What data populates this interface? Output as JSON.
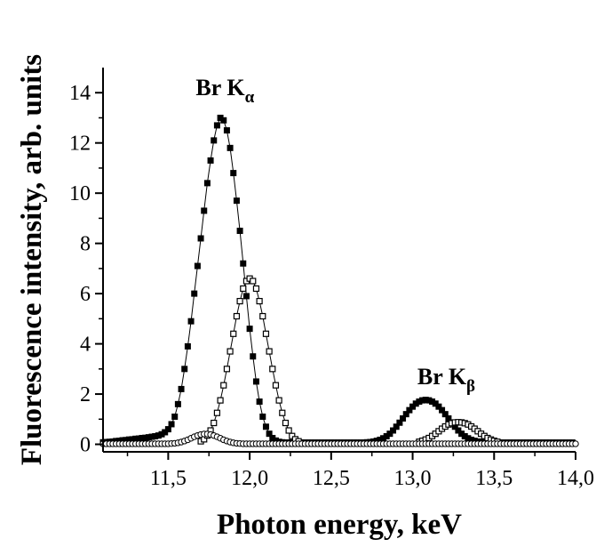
{
  "chart_data": {
    "type": "scatter",
    "title": "",
    "xlabel": "Photon energy, keV",
    "ylabel": "Fluorescence intensity, arb. units",
    "xlim": [
      11.1,
      14.0
    ],
    "ylim": [
      -0.3,
      15.0
    ],
    "grid": false,
    "legend": "none",
    "x_ticks": [
      {
        "value": 11.5,
        "label": "11,5"
      },
      {
        "value": 12.0,
        "label": "12,0"
      },
      {
        "value": 12.5,
        "label": "12,5"
      },
      {
        "value": 13.0,
        "label": "13,0"
      },
      {
        "value": 13.5,
        "label": "13,5"
      },
      {
        "value": 14.0,
        "label": "14,0"
      }
    ],
    "y_ticks": [
      {
        "value": 0,
        "label": "0"
      },
      {
        "value": 2,
        "label": "2"
      },
      {
        "value": 4,
        "label": "4"
      },
      {
        "value": 6,
        "label": "6"
      },
      {
        "value": 8,
        "label": "8"
      },
      {
        "value": 10,
        "label": "10"
      },
      {
        "value": 12,
        "label": "12"
      },
      {
        "value": 14,
        "label": "14"
      }
    ],
    "annotations": [
      {
        "main": "Br K",
        "sub": "α",
        "x": 11.92,
        "y": 13.9
      },
      {
        "main": "Br K",
        "sub": "β",
        "x": 13.28,
        "y": 2.4
      }
    ],
    "x_step": 0.02,
    "series": [
      {
        "marker": "filled-square",
        "color": "#000000",
        "x_start": 11.1,
        "values": [
          0.08,
          0.09,
          0.1,
          0.11,
          0.13,
          0.14,
          0.16,
          0.17,
          0.19,
          0.2,
          0.22,
          0.23,
          0.25,
          0.26,
          0.28,
          0.3,
          0.32,
          0.35,
          0.4,
          0.48,
          0.6,
          0.8,
          1.1,
          1.6,
          2.2,
          3.0,
          3.9,
          4.9,
          6.0,
          7.1,
          8.2,
          9.3,
          10.4,
          11.3,
          12.1,
          12.7,
          13.0,
          12.9,
          12.5,
          11.8,
          10.8,
          9.7,
          8.5,
          7.2,
          5.9,
          4.6,
          3.5,
          2.5,
          1.7,
          1.1,
          0.7,
          0.42,
          0.25,
          0.15,
          0.1,
          0.08,
          0.07,
          0.07,
          0.07,
          0.07,
          0.07,
          0.07,
          0.07,
          0.07,
          0.07,
          0.07,
          0.07,
          0.07,
          0.07,
          0.07,
          0.07,
          0.07,
          0.07,
          0.07,
          0.07,
          0.07,
          0.07,
          0.07,
          0.07,
          0.07,
          0.07,
          0.08,
          0.09,
          0.11,
          0.14,
          0.18,
          0.24,
          0.32,
          0.42,
          0.55,
          0.7,
          0.86,
          1.03,
          1.2,
          1.36,
          1.5,
          1.62,
          1.7,
          1.75,
          1.77,
          1.75,
          1.7,
          1.62,
          1.5,
          1.36,
          1.2,
          1.03,
          0.86,
          0.7,
          0.55,
          0.42,
          0.32,
          0.24,
          0.18,
          0.14,
          0.11,
          0.09,
          0.08,
          0.07,
          0.07,
          0.07,
          0.07,
          0.07,
          0.07,
          0.07,
          0.07,
          0.07,
          0.07,
          0.07,
          0.07,
          0.07,
          0.07,
          0.07,
          0.07,
          0.07,
          0.07,
          0.07,
          0.07,
          0.07,
          0.07,
          0.07,
          0.07,
          0.07,
          0.07,
          0.07
        ]
      },
      {
        "marker": "open-square",
        "color": "#000000",
        "x_start": 11.7,
        "values": [
          0.12,
          0.2,
          0.35,
          0.55,
          0.85,
          1.25,
          1.75,
          2.35,
          3.0,
          3.7,
          4.4,
          5.1,
          5.7,
          6.2,
          6.5,
          6.6,
          6.5,
          6.2,
          5.7,
          5.1,
          4.4,
          3.7,
          3.0,
          2.35,
          1.75,
          1.25,
          0.85,
          0.55,
          0.33,
          0.2,
          0.12
        ]
      },
      {
        "marker": "open-square",
        "color": "#000000",
        "x_start": 13.04,
        "values": [
          0.1,
          0.14,
          0.19,
          0.25,
          0.33,
          0.42,
          0.52,
          0.62,
          0.71,
          0.79,
          0.84,
          0.87,
          0.88,
          0.87,
          0.84,
          0.79,
          0.71,
          0.62,
          0.52,
          0.42,
          0.33,
          0.25,
          0.19,
          0.14,
          0.1
        ]
      },
      {
        "marker": "open-circle",
        "color": "#000000",
        "x_start": 11.1,
        "values": [
          0.02,
          0.02,
          0.02,
          0.02,
          0.02,
          0.02,
          0.02,
          0.02,
          0.02,
          0.02,
          0.02,
          0.02,
          0.02,
          0.02,
          0.02,
          0.02,
          0.02,
          0.02,
          0.02,
          0.02,
          0.02,
          0.03,
          0.04,
          0.06,
          0.09,
          0.13,
          0.18,
          0.24,
          0.3,
          0.35,
          0.39,
          0.41,
          0.41,
          0.39,
          0.35,
          0.3,
          0.24,
          0.18,
          0.13,
          0.09,
          0.06,
          0.04,
          0.03,
          0.02,
          0.02,
          0.02,
          0.02,
          0.02,
          0.02,
          0.02,
          0.02,
          0.02,
          0.02,
          0.02,
          0.02,
          0.02,
          0.02,
          0.02,
          0.02,
          0.02,
          0.02,
          0.02,
          0.02,
          0.02,
          0.02,
          0.02,
          0.02,
          0.02,
          0.02,
          0.02,
          0.02,
          0.02,
          0.02,
          0.02,
          0.02,
          0.02,
          0.02,
          0.02,
          0.02,
          0.02,
          0.02,
          0.02,
          0.02,
          0.02,
          0.02,
          0.02,
          0.02,
          0.02,
          0.02,
          0.02,
          0.02,
          0.02,
          0.02,
          0.02,
          0.02,
          0.02,
          0.02,
          0.02,
          0.02,
          0.02,
          0.02,
          0.02,
          0.02,
          0.02,
          0.02,
          0.02,
          0.02,
          0.02,
          0.02,
          0.02,
          0.02,
          0.02,
          0.02,
          0.02,
          0.02,
          0.02,
          0.02,
          0.02,
          0.02,
          0.02,
          0.02,
          0.02,
          0.02,
          0.02,
          0.02,
          0.02,
          0.02,
          0.02,
          0.02,
          0.02,
          0.02,
          0.02,
          0.02,
          0.02,
          0.02,
          0.02,
          0.02,
          0.02,
          0.02,
          0.02,
          0.02,
          0.02,
          0.02,
          0.02,
          0.02,
          0.02
        ]
      }
    ]
  }
}
